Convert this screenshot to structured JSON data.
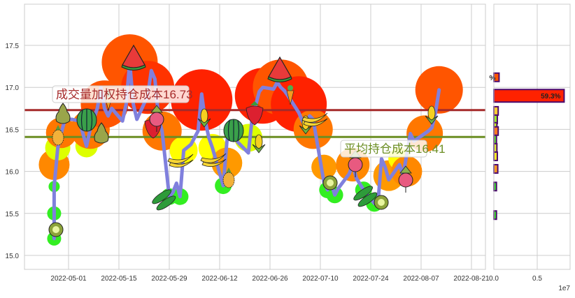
{
  "chart_data": [
    {
      "id": "main",
      "type": "line",
      "title": "",
      "xlabel": "",
      "ylabel": "",
      "ylim": [
        14.83,
        17.98
      ],
      "xlim": [
        "2022-04-18",
        "2022-08-25"
      ],
      "grid": true,
      "y_ticks": [
        "15.0",
        "15.5",
        "16.0",
        "16.5",
        "17.0",
        "17.5"
      ],
      "y_tick_values": [
        15.0,
        15.5,
        16.0,
        16.5,
        17.0,
        17.5
      ],
      "x_ticks": [
        "2022-05-01",
        "2022-05-15",
        "2022-05-29",
        "2022-06-12",
        "2022-06-26",
        "2022-07-10",
        "2022-07-24",
        "2022-08-07",
        "2022-08-21"
      ],
      "price_line": {
        "color": "#8080dd",
        "points": [
          {
            "date": "2022-04-27",
            "close": 15.2
          },
          {
            "date": "2022-04-27",
            "close": 15.5
          },
          {
            "date": "2022-04-27",
            "close": 15.82
          },
          {
            "date": "2022-04-28",
            "close": 16.28
          },
          {
            "date": "2022-04-29",
            "close": 16.46
          },
          {
            "date": "2022-04-30",
            "close": 16.62
          },
          {
            "date": "2022-05-02",
            "close": 16.62
          },
          {
            "date": "2022-05-04",
            "close": 16.6
          },
          {
            "date": "2022-05-06",
            "close": 16.3
          },
          {
            "date": "2022-05-07",
            "close": 16.5
          },
          {
            "date": "2022-05-09",
            "close": 16.75
          },
          {
            "date": "2022-05-10",
            "close": 17.0
          },
          {
            "date": "2022-05-11",
            "close": 16.75
          },
          {
            "date": "2022-05-12",
            "close": 16.66
          },
          {
            "date": "2022-05-13",
            "close": 16.75
          },
          {
            "date": "2022-05-16",
            "close": 16.6
          },
          {
            "date": "2022-05-17",
            "close": 16.8
          },
          {
            "date": "2022-05-18",
            "close": 17.3
          },
          {
            "date": "2022-05-19",
            "close": 16.8
          },
          {
            "date": "2022-05-20",
            "close": 16.62
          },
          {
            "date": "2022-05-23",
            "close": 16.9
          },
          {
            "date": "2022-05-24",
            "close": 17.2
          },
          {
            "date": "2022-05-25",
            "close": 17.1
          },
          {
            "date": "2022-05-26",
            "close": 16.65
          },
          {
            "date": "2022-05-27",
            "close": 16.48
          },
          {
            "date": "2022-05-29",
            "close": 15.7
          },
          {
            "date": "2022-05-30",
            "close": 15.75
          },
          {
            "date": "2022-05-31",
            "close": 15.86
          },
          {
            "date": "2022-06-01",
            "close": 15.7
          },
          {
            "date": "2022-06-02",
            "close": 16.25
          },
          {
            "date": "2022-06-04",
            "close": 16.32
          },
          {
            "date": "2022-06-06",
            "close": 16.48
          },
          {
            "date": "2022-06-07",
            "close": 16.92
          },
          {
            "date": "2022-06-08",
            "close": 16.6
          },
          {
            "date": "2022-06-09",
            "close": 16.4
          },
          {
            "date": "2022-06-10",
            "close": 16.28
          },
          {
            "date": "2022-06-13",
            "close": 15.83
          },
          {
            "date": "2022-06-14",
            "close": 16.35
          },
          {
            "date": "2022-06-15",
            "close": 16.6
          },
          {
            "date": "2022-06-16",
            "close": 16.5
          },
          {
            "date": "2022-06-17",
            "close": 16.35
          },
          {
            "date": "2022-06-20",
            "close": 16.22
          },
          {
            "date": "2022-06-21",
            "close": 16.62
          },
          {
            "date": "2022-06-23",
            "close": 16.95
          },
          {
            "date": "2022-06-24",
            "close": 17.0
          },
          {
            "date": "2022-06-27",
            "close": 16.98
          },
          {
            "date": "2022-06-28",
            "close": 17.06
          },
          {
            "date": "2022-06-29",
            "close": 17.0
          },
          {
            "date": "2022-06-30",
            "close": 16.96
          },
          {
            "date": "2022-07-01",
            "close": 16.9
          },
          {
            "date": "2022-07-04",
            "close": 16.7
          },
          {
            "date": "2022-07-05",
            "close": 16.6
          },
          {
            "date": "2022-07-06",
            "close": 16.52
          },
          {
            "date": "2022-07-07",
            "close": 16.66
          },
          {
            "date": "2022-07-08",
            "close": 16.62
          },
          {
            "date": "2022-07-11",
            "close": 15.87
          },
          {
            "date": "2022-07-12",
            "close": 15.78
          },
          {
            "date": "2022-07-13",
            "close": 15.86
          },
          {
            "date": "2022-07-14",
            "close": 15.72
          },
          {
            "date": "2022-07-15",
            "close": 15.8
          },
          {
            "date": "2022-07-18",
            "close": 15.97
          },
          {
            "date": "2022-07-19",
            "close": 16.08
          },
          {
            "date": "2022-07-20",
            "close": 15.92
          },
          {
            "date": "2022-07-21",
            "close": 15.85
          },
          {
            "date": "2022-07-22",
            "close": 15.78
          },
          {
            "date": "2022-07-25",
            "close": 15.62
          },
          {
            "date": "2022-07-26",
            "close": 15.62
          },
          {
            "date": "2022-07-27",
            "close": 16.15
          },
          {
            "date": "2022-07-28",
            "close": 16.05
          },
          {
            "date": "2022-07-29",
            "close": 15.9
          },
          {
            "date": "2022-08-01",
            "close": 16.08
          },
          {
            "date": "2022-08-02",
            "close": 15.95
          },
          {
            "date": "2022-08-03",
            "close": 16.2
          },
          {
            "date": "2022-08-04",
            "close": 16.45
          },
          {
            "date": "2022-08-05",
            "close": 16.36
          },
          {
            "date": "2022-08-08",
            "close": 16.45
          },
          {
            "date": "2022-08-09",
            "close": 16.48
          },
          {
            "date": "2022-08-10",
            "close": 16.52
          },
          {
            "date": "2022-08-11",
            "close": 16.7
          },
          {
            "date": "2022-08-12",
            "close": 16.97
          }
        ]
      },
      "volume_bubbles": [
        {
          "date": "2022-04-27",
          "price": 15.2,
          "size": 10,
          "color": "#33ee22"
        },
        {
          "date": "2022-04-27",
          "price": 15.5,
          "size": 10,
          "color": "#33ee22"
        },
        {
          "date": "2022-04-27",
          "price": 15.82,
          "size": 8,
          "color": "#33ee22"
        },
        {
          "date": "2022-04-27",
          "price": 16.08,
          "size": 22,
          "color": "#ff8800"
        },
        {
          "date": "2022-04-28",
          "price": 16.28,
          "size": 18,
          "color": "#ddff00"
        },
        {
          "date": "2022-04-29",
          "price": 16.46,
          "size": 22,
          "color": "#ff7700"
        },
        {
          "date": "2022-05-06",
          "price": 16.3,
          "size": 16,
          "color": "#ddff00"
        },
        {
          "date": "2022-05-07",
          "price": 16.5,
          "size": 28,
          "color": "#ff7700"
        },
        {
          "date": "2022-05-11",
          "price": 16.8,
          "size": 34,
          "color": "#ff5500"
        },
        {
          "date": "2022-05-18",
          "price": 17.3,
          "size": 40,
          "color": "#ff5500"
        },
        {
          "date": "2022-05-23",
          "price": 17.0,
          "size": 38,
          "color": "#ff3300"
        },
        {
          "date": "2022-05-27",
          "price": 16.48,
          "size": 28,
          "color": "#ff7700"
        },
        {
          "date": "2022-05-29",
          "price": 15.7,
          "size": 12,
          "color": "#33ee22"
        },
        {
          "date": "2022-06-01",
          "price": 15.7,
          "size": 12,
          "color": "#33ee22"
        },
        {
          "date": "2022-06-02",
          "price": 16.25,
          "size": 20,
          "color": "#ffff00"
        },
        {
          "date": "2022-06-07",
          "price": 16.85,
          "size": 44,
          "color": "#ff2200"
        },
        {
          "date": "2022-06-10",
          "price": 16.28,
          "size": 20,
          "color": "#ffff00"
        },
        {
          "date": "2022-06-13",
          "price": 15.83,
          "size": 12,
          "color": "#33ee22"
        },
        {
          "date": "2022-06-14",
          "price": 16.1,
          "size": 22,
          "color": "#ff9900"
        },
        {
          "date": "2022-06-20",
          "price": 16.4,
          "size": 20,
          "color": "#ddff00"
        },
        {
          "date": "2022-06-24",
          "price": 16.9,
          "size": 40,
          "color": "#ff2200"
        },
        {
          "date": "2022-06-29",
          "price": 17.0,
          "size": 40,
          "color": "#ff5500"
        },
        {
          "date": "2022-07-04",
          "price": 16.8,
          "size": 40,
          "color": "#ff2200"
        },
        {
          "date": "2022-07-08",
          "price": 16.5,
          "size": 28,
          "color": "#ff7700"
        },
        {
          "date": "2022-07-11",
          "price": 16.05,
          "size": 18,
          "color": "#ff9900"
        },
        {
          "date": "2022-07-12",
          "price": 15.78,
          "size": 12,
          "color": "#33ee22"
        },
        {
          "date": "2022-07-14",
          "price": 15.72,
          "size": 12,
          "color": "#33ee22"
        },
        {
          "date": "2022-07-19",
          "price": 16.08,
          "size": 24,
          "color": "#ff8800"
        },
        {
          "date": "2022-07-22",
          "price": 15.78,
          "size": 12,
          "color": "#33ee22"
        },
        {
          "date": "2022-07-25",
          "price": 15.62,
          "size": 12,
          "color": "#33ee22"
        },
        {
          "date": "2022-07-29",
          "price": 15.95,
          "size": 22,
          "color": "#ff9900"
        },
        {
          "date": "2022-08-01",
          "price": 16.15,
          "size": 16,
          "color": "#ffff00"
        },
        {
          "date": "2022-08-03",
          "price": 16.0,
          "size": 22,
          "color": "#ff8800"
        },
        {
          "date": "2022-08-08",
          "price": 16.45,
          "size": 26,
          "color": "#ff7700"
        },
        {
          "date": "2022-08-12",
          "price": 16.97,
          "size": 34,
          "color": "#ff5500"
        }
      ],
      "horizontal_lines": [
        {
          "label": "成交量加权持仓成本16.73",
          "value": 16.73,
          "color": "#a52a2a",
          "label_color": "#a52a2a"
        },
        {
          "label": "平均持仓成本16.41",
          "value": 16.41,
          "color": "#6b8e23",
          "label_color": "#6b8e23"
        }
      ],
      "decorations": [
        "watermelon",
        "pear",
        "pineapple",
        "carrot",
        "strawberry",
        "radish",
        "banana",
        "corn",
        "peas",
        "kiwi"
      ]
    },
    {
      "id": "volume_profile",
      "type": "bar",
      "orientation": "horizontal",
      "xlim": [
        0,
        0.85
      ],
      "x_ticks": [
        "0.0",
        "0.5"
      ],
      "x_tick_values": [
        0.0,
        0.5
      ],
      "x_scale_label": "1e7",
      "bars": [
        {
          "price": 17.12,
          "value": 0.06,
          "color": "#ff5500",
          "label": "%"
        },
        {
          "price": 16.9,
          "value": 0.81,
          "color": "#ff2200",
          "label": "59.3%"
        },
        {
          "price": 16.72,
          "value": 0.05,
          "color": "#ffcc33"
        },
        {
          "price": 16.62,
          "value": 0.04,
          "color": "#99ee22"
        },
        {
          "price": 16.53,
          "value": 0.035,
          "color": "#ccff22"
        },
        {
          "price": 16.48,
          "value": 0.05,
          "color": "#ff7722"
        },
        {
          "price": 16.38,
          "value": 0.03,
          "color": "#55ee22"
        },
        {
          "price": 16.28,
          "value": 0.035,
          "color": "#ddee33"
        },
        {
          "price": 16.18,
          "value": 0.04,
          "color": "#ffee22"
        },
        {
          "price": 16.03,
          "value": 0.045,
          "color": "#ff9922"
        },
        {
          "price": 15.82,
          "value": 0.03,
          "color": "#33ee22"
        },
        {
          "price": 15.48,
          "value": 0.03,
          "color": "#33ee22"
        }
      ],
      "bar_edge_color": "#4b0a6e",
      "highlight_label": "59.3%"
    }
  ]
}
